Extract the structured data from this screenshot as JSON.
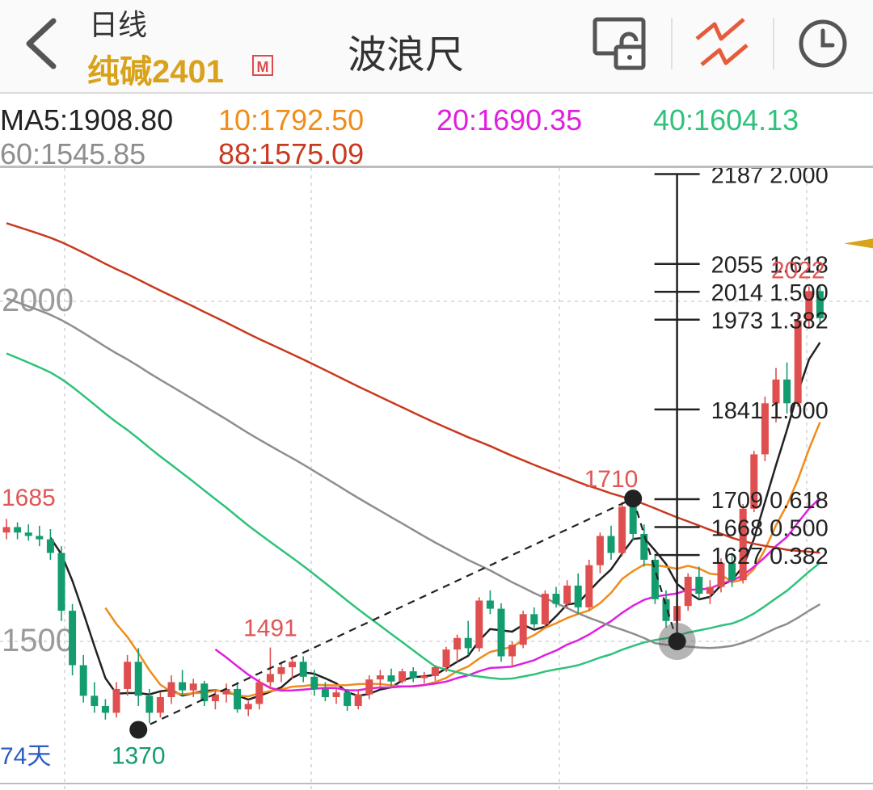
{
  "header": {
    "period_label": "日线",
    "symbol": "纯碱2401",
    "market_badge": "M",
    "tool_title": "波浪尺"
  },
  "icons": {
    "back": "chevron-left-icon",
    "lock": "screen-lock-icon",
    "wave": "wave-ruler-icon",
    "clock": "clock-icon"
  },
  "ma_labels": {
    "ma5": "MA5:1908.80",
    "ma10": "10:1792.50",
    "ma20": "20:1690.35",
    "ma40": "40:1604.13",
    "ma60": "60:1545.85",
    "ma88": "88:1575.09"
  },
  "colors": {
    "ma5": "#222222",
    "ma10": "#f08c1a",
    "ma20": "#e01ee0",
    "ma40": "#2ec27a",
    "ma60": "#8e8e8e",
    "ma88": "#c83a20",
    "up": "#e04f4f",
    "down": "#139c6e",
    "accent": "#d9a21b"
  },
  "chart_data": {
    "type": "candlestick",
    "y_ticks": [
      2000,
      1500
    ],
    "y_tick_labels": [
      "2000",
      "1500"
    ],
    "day_count_label": "74天",
    "wave_ruler": {
      "points": [
        {
          "label": "1370",
          "value": 1370
        },
        {
          "label": "1710",
          "value": 1710
        },
        {
          "label": "",
          "value": 1500
        }
      ],
      "levels": [
        {
          "price": "2187",
          "ratio": "2.000",
          "value": 2187
        },
        {
          "price": "2055",
          "ratio": "1.618",
          "value": 2055
        },
        {
          "price": "2014",
          "ratio": "1.500",
          "value": 2014
        },
        {
          "price": "1973",
          "ratio": "1.382",
          "value": 1973
        },
        {
          "price": "1841",
          "ratio": "1.000",
          "value": 1841
        },
        {
          "price": "1709",
          "ratio": "0.618",
          "value": 1709
        },
        {
          "price": "1668",
          "ratio": "0.500",
          "value": 1668
        },
        {
          "price": "1627",
          "ratio": "0.382",
          "value": 1627
        }
      ]
    },
    "annotations": [
      {
        "text": "1685",
        "value": 1685
      },
      {
        "text": "1491",
        "value": 1491
      },
      {
        "text": "1710",
        "value": 1710
      },
      {
        "text": "2022",
        "value": 2022
      },
      {
        "text": "1370",
        "value": 1370
      }
    ],
    "candles": [
      [
        1660,
        1680,
        1650,
        1668
      ],
      [
        1668,
        1675,
        1650,
        1660
      ],
      [
        1660,
        1672,
        1648,
        1655
      ],
      [
        1655,
        1670,
        1640,
        1650
      ],
      [
        1650,
        1665,
        1620,
        1630
      ],
      [
        1630,
        1640,
        1530,
        1545
      ],
      [
        1545,
        1555,
        1450,
        1465
      ],
      [
        1465,
        1480,
        1410,
        1420
      ],
      [
        1420,
        1440,
        1395,
        1405
      ],
      [
        1405,
        1415,
        1385,
        1395
      ],
      [
        1395,
        1440,
        1388,
        1430
      ],
      [
        1430,
        1480,
        1420,
        1470
      ],
      [
        1470,
        1490,
        1405,
        1420
      ],
      [
        1420,
        1430,
        1380,
        1395
      ],
      [
        1395,
        1425,
        1388,
        1418
      ],
      [
        1418,
        1450,
        1408,
        1440
      ],
      [
        1440,
        1458,
        1420,
        1428
      ],
      [
        1428,
        1445,
        1418,
        1438
      ],
      [
        1438,
        1442,
        1405,
        1412
      ],
      [
        1412,
        1428,
        1400,
        1422
      ],
      [
        1422,
        1438,
        1410,
        1430
      ],
      [
        1430,
        1440,
        1395,
        1400
      ],
      [
        1400,
        1412,
        1390,
        1408
      ],
      [
        1408,
        1445,
        1400,
        1440
      ],
      [
        1440,
        1491,
        1430,
        1452
      ],
      [
        1452,
        1470,
        1440,
        1462
      ],
      [
        1462,
        1478,
        1445,
        1470
      ],
      [
        1470,
        1478,
        1440,
        1448
      ],
      [
        1448,
        1458,
        1420,
        1430
      ],
      [
        1430,
        1440,
        1412,
        1418
      ],
      [
        1418,
        1430,
        1408,
        1425
      ],
      [
        1425,
        1430,
        1398,
        1405
      ],
      [
        1405,
        1428,
        1400,
        1422
      ],
      [
        1422,
        1450,
        1415,
        1444
      ],
      [
        1444,
        1458,
        1432,
        1450
      ],
      [
        1450,
        1460,
        1435,
        1441
      ],
      [
        1441,
        1460,
        1438,
        1456
      ],
      [
        1456,
        1462,
        1440,
        1446
      ],
      [
        1446,
        1455,
        1438,
        1449
      ],
      [
        1449,
        1465,
        1442,
        1462
      ],
      [
        1462,
        1492,
        1455,
        1488
      ],
      [
        1488,
        1510,
        1470,
        1505
      ],
      [
        1505,
        1530,
        1480,
        1490
      ],
      [
        1490,
        1565,
        1485,
        1560
      ],
      [
        1560,
        1575,
        1540,
        1548
      ],
      [
        1548,
        1556,
        1470,
        1478
      ],
      [
        1478,
        1500,
        1462,
        1495
      ],
      [
        1495,
        1545,
        1490,
        1540
      ],
      [
        1540,
        1550,
        1520,
        1525
      ],
      [
        1525,
        1575,
        1520,
        1570
      ],
      [
        1570,
        1580,
        1550,
        1555
      ],
      [
        1555,
        1590,
        1548,
        1582
      ],
      [
        1582,
        1600,
        1540,
        1550
      ],
      [
        1550,
        1620,
        1545,
        1612
      ],
      [
        1612,
        1660,
        1600,
        1655
      ],
      [
        1655,
        1670,
        1620,
        1630
      ],
      [
        1630,
        1705,
        1625,
        1698
      ],
      [
        1698,
        1710,
        1648,
        1658
      ],
      [
        1658,
        1672,
        1610,
        1620
      ],
      [
        1620,
        1625,
        1555,
        1562
      ],
      [
        1562,
        1575,
        1520,
        1530
      ],
      [
        1530,
        1560,
        1510,
        1552
      ],
      [
        1552,
        1600,
        1545,
        1595
      ],
      [
        1595,
        1610,
        1562,
        1570
      ],
      [
        1570,
        1590,
        1555,
        1580
      ],
      [
        1580,
        1622,
        1572,
        1615
      ],
      [
        1615,
        1630,
        1580,
        1590
      ],
      [
        1590,
        1702,
        1585,
        1695
      ],
      [
        1695,
        1780,
        1690,
        1775
      ],
      [
        1775,
        1860,
        1765,
        1850
      ],
      [
        1850,
        1902,
        1822,
        1885
      ],
      [
        1885,
        1910,
        1835,
        1850
      ],
      [
        1850,
        1980,
        1845,
        1972
      ],
      [
        1972,
        2022,
        1960,
        2015
      ],
      [
        2015,
        2025,
        1968,
        1975
      ]
    ]
  }
}
